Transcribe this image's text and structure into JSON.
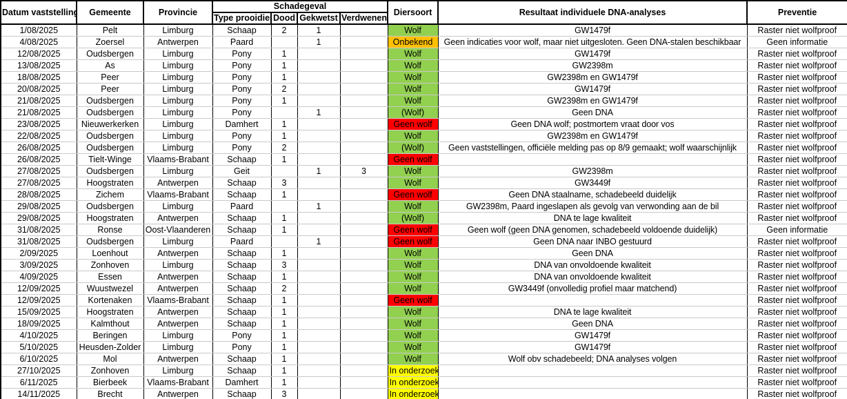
{
  "table": {
    "header": {
      "datum_vaststelling": "Datum vaststelling",
      "gemeente": "Gemeente",
      "provincie": "Provincie",
      "schadegeval_group": "Schadegeval",
      "type_prooidier": "Type prooidier",
      "dood": "Dood",
      "gekwetst": "Gekwetst",
      "verdwenen": "Verdwenen",
      "diersoort": "Diersoort",
      "resultaat_dna": "Resultaat individuele DNA-analyses",
      "preventie": "Preventie"
    },
    "status_colors": {
      "Wolf": "#92D050",
      "(Wolf)": "#92D050",
      "Onbekend": "#FFC000",
      "Geen wolf": "#FF0000",
      "In onderzoek": "#FFFF00"
    },
    "rows": [
      {
        "datum": "1/08/2025",
        "gemeente": "Pelt",
        "provincie": "Limburg",
        "type_prooidier": "Schaap",
        "dood": "2",
        "gekwetst": "1",
        "verdwenen": "",
        "diersoort": "Wolf",
        "resultaat": "GW1479f",
        "preventie": "Raster niet wolfproof"
      },
      {
        "datum": "4/08/2025",
        "gemeente": "Zoersel",
        "provincie": "Antwerpen",
        "type_prooidier": "Paard",
        "dood": "",
        "gekwetst": "1",
        "verdwenen": "",
        "diersoort": "Onbekend",
        "resultaat": "Geen indicaties voor wolf, maar niet uitgesloten. Geen DNA-stalen beschikbaar",
        "preventie": "Geen informatie"
      },
      {
        "datum": "12/08/2025",
        "gemeente": "Oudsbergen",
        "provincie": "Limburg",
        "type_prooidier": "Pony",
        "dood": "1",
        "gekwetst": "",
        "verdwenen": "",
        "diersoort": "Wolf",
        "resultaat": "GW1479f",
        "preventie": "Raster niet wolfproof"
      },
      {
        "datum": "13/08/2025",
        "gemeente": "As",
        "provincie": "Limburg",
        "type_prooidier": "Pony",
        "dood": "1",
        "gekwetst": "",
        "verdwenen": "",
        "diersoort": "Wolf",
        "resultaat": "GW2398m",
        "preventie": "Raster niet wolfproof"
      },
      {
        "datum": "18/08/2025",
        "gemeente": "Peer",
        "provincie": "Limburg",
        "type_prooidier": "Pony",
        "dood": "1",
        "gekwetst": "",
        "verdwenen": "",
        "diersoort": "Wolf",
        "resultaat": "GW2398m en GW1479f",
        "preventie": "Raster niet wolfproof"
      },
      {
        "datum": "20/08/2025",
        "gemeente": "Peer",
        "provincie": "Limburg",
        "type_prooidier": "Pony",
        "dood": "2",
        "gekwetst": "",
        "verdwenen": "",
        "diersoort": "Wolf",
        "resultaat": "GW1479f",
        "preventie": "Raster niet wolfproof"
      },
      {
        "datum": "21/08/2025",
        "gemeente": "Oudsbergen",
        "provincie": "Limburg",
        "type_prooidier": "Pony",
        "dood": "1",
        "gekwetst": "",
        "verdwenen": "",
        "diersoort": "Wolf",
        "resultaat": "GW2398m en GW1479f",
        "preventie": "Raster niet wolfproof"
      },
      {
        "datum": "21/08/2025",
        "gemeente": "Oudsbergen",
        "provincie": "Limburg",
        "type_prooidier": "Pony",
        "dood": "",
        "gekwetst": "1",
        "verdwenen": "",
        "diersoort": "(Wolf)",
        "resultaat": "Geen DNA",
        "preventie": "Raster niet wolfproof"
      },
      {
        "datum": "23/08/2025",
        "gemeente": "Nieuwerkerken",
        "provincie": "Limburg",
        "type_prooidier": "Damhert",
        "dood": "1",
        "gekwetst": "",
        "verdwenen": "",
        "diersoort": "Geen wolf",
        "resultaat": "Geen DNA wolf; postmortem vraat door vos",
        "preventie": "Raster niet wolfproof"
      },
      {
        "datum": "22/08/2025",
        "gemeente": "Oudsbergen",
        "provincie": "Limburg",
        "type_prooidier": "Pony",
        "dood": "1",
        "gekwetst": "",
        "verdwenen": "",
        "diersoort": "Wolf",
        "resultaat": "GW2398m en GW1479f",
        "preventie": "Raster niet wolfproof"
      },
      {
        "datum": "26/08/2025",
        "gemeente": "Oudsbergen",
        "provincie": "Limburg",
        "type_prooidier": "Pony",
        "dood": "2",
        "gekwetst": "",
        "verdwenen": "",
        "diersoort": "(Wolf)",
        "resultaat": "Geen vaststellingen, officiële melding pas op 8/9 gemaakt; wolf waarschijnlijk",
        "preventie": "Raster niet wolfproof"
      },
      {
        "datum": "26/08/2025",
        "gemeente": "Tielt-Winge",
        "provincie": "Vlaams-Brabant",
        "type_prooidier": "Schaap",
        "dood": "1",
        "gekwetst": "",
        "verdwenen": "",
        "diersoort": "Geen wolf",
        "resultaat": "",
        "preventie": "Raster niet wolfproof"
      },
      {
        "datum": "27/08/2025",
        "gemeente": "Oudsbergen",
        "provincie": "Limburg",
        "type_prooidier": "Geit",
        "dood": "",
        "gekwetst": "1",
        "verdwenen": "3",
        "diersoort": "Wolf",
        "resultaat": "GW2398m",
        "preventie": "Raster niet wolfproof"
      },
      {
        "datum": "27/08/2025",
        "gemeente": "Hoogstraten",
        "provincie": "Antwerpen",
        "type_prooidier": "Schaap",
        "dood": "3",
        "gekwetst": "",
        "verdwenen": "",
        "diersoort": "Wolf",
        "resultaat": "GW3449f",
        "preventie": "Raster niet wolfproof"
      },
      {
        "datum": "28/08/2025",
        "gemeente": "Zichem",
        "provincie": "Vlaams-Brabant",
        "type_prooidier": "Schaap",
        "dood": "1",
        "gekwetst": "",
        "verdwenen": "",
        "diersoort": "Geen wolf",
        "resultaat": "Geen DNA staalname, schadebeeld duidelijk",
        "preventie": "Raster niet wolfproof"
      },
      {
        "datum": "29/08/2025",
        "gemeente": "Oudsbergen",
        "provincie": "Limburg",
        "type_prooidier": "Paard",
        "dood": "",
        "gekwetst": "1",
        "verdwenen": "",
        "diersoort": "Wolf",
        "resultaat": "GW2398m, Paard ingeslapen als gevolg van verwonding aan de bil",
        "preventie": "Raster niet wolfproof"
      },
      {
        "datum": "29/08/2025",
        "gemeente": "Hoogstraten",
        "provincie": "Antwerpen",
        "type_prooidier": "Schaap",
        "dood": "1",
        "gekwetst": "",
        "verdwenen": "",
        "diersoort": "(Wolf)",
        "resultaat": "DNA te lage kwaliteit",
        "preventie": "Raster niet wolfproof"
      },
      {
        "datum": "31/08/2025",
        "gemeente": "Ronse",
        "provincie": "Oost-Vlaanderen",
        "type_prooidier": "Schaap",
        "dood": "1",
        "gekwetst": "",
        "verdwenen": "",
        "diersoort": "Geen wolf",
        "resultaat": "Geen wolf (geen DNA genomen, schadebeeld voldoende duidelijk)",
        "preventie": "Geen informatie"
      },
      {
        "datum": "31/08/2025",
        "gemeente": "Oudsbergen",
        "provincie": "Limburg",
        "type_prooidier": "Paard",
        "dood": "",
        "gekwetst": "1",
        "verdwenen": "",
        "diersoort": "Geen wolf",
        "resultaat": "Geen DNA naar INBO gestuurd",
        "preventie": "Raster niet wolfproof"
      },
      {
        "datum": "2/09/2025",
        "gemeente": "Loenhout",
        "provincie": "Antwerpen",
        "type_prooidier": "Schaap",
        "dood": "1",
        "gekwetst": "",
        "verdwenen": "",
        "diersoort": "Wolf",
        "resultaat": "Geen DNA",
        "preventie": "Raster niet wolfproof"
      },
      {
        "datum": "3/09/2025",
        "gemeente": "Zonhoven",
        "provincie": "Limburg",
        "type_prooidier": "Schaap",
        "dood": "3",
        "gekwetst": "",
        "verdwenen": "",
        "diersoort": "Wolf",
        "resultaat": "DNA van onvoldoende kwaliteit",
        "preventie": "Raster niet wolfproof"
      },
      {
        "datum": "4/09/2025",
        "gemeente": "Essen",
        "provincie": "Antwerpen",
        "type_prooidier": "Schaap",
        "dood": "1",
        "gekwetst": "",
        "verdwenen": "",
        "diersoort": "Wolf",
        "resultaat": "DNA van onvoldoende kwaliteit",
        "preventie": "Raster niet wolfproof"
      },
      {
        "datum": "12/09/2025",
        "gemeente": "Wuustwezel",
        "provincie": "Antwerpen",
        "type_prooidier": "Schaap",
        "dood": "2",
        "gekwetst": "",
        "verdwenen": "",
        "diersoort": "Wolf",
        "resultaat": "GW3449f (onvolledig profiel maar matchend)",
        "preventie": "Raster niet wolfproof"
      },
      {
        "datum": "12/09/2025",
        "gemeente": "Kortenaken",
        "provincie": "Vlaams-Brabant",
        "type_prooidier": "Schaap",
        "dood": "1",
        "gekwetst": "",
        "verdwenen": "",
        "diersoort": "Geen wolf",
        "resultaat": "",
        "preventie": "Raster niet wolfproof"
      },
      {
        "datum": "15/09/2025",
        "gemeente": "Hoogstraten",
        "provincie": "Antwerpen",
        "type_prooidier": "Schaap",
        "dood": "1",
        "gekwetst": "",
        "verdwenen": "",
        "diersoort": "Wolf",
        "resultaat": "DNA te lage kwaliteit",
        "preventie": "Raster niet wolfproof"
      },
      {
        "datum": "18/09/2025",
        "gemeente": "Kalmthout",
        "provincie": "Antwerpen",
        "type_prooidier": "Schaap",
        "dood": "1",
        "gekwetst": "",
        "verdwenen": "",
        "diersoort": "Wolf",
        "resultaat": "Geen DNA",
        "preventie": "Raster niet wolfproof"
      },
      {
        "datum": "4/10/2025",
        "gemeente": "Beringen",
        "provincie": "Limburg",
        "type_prooidier": "Pony",
        "dood": "1",
        "gekwetst": "",
        "verdwenen": "",
        "diersoort": "Wolf",
        "resultaat": "GW1479f",
        "preventie": "Raster niet wolfproof"
      },
      {
        "datum": "5/10/2025",
        "gemeente": "Heusden-Zolder",
        "provincie": "Limburg",
        "type_prooidier": "Pony",
        "dood": "1",
        "gekwetst": "",
        "verdwenen": "",
        "diersoort": "Wolf",
        "resultaat": "GW1479f",
        "preventie": "Raster niet wolfproof"
      },
      {
        "datum": "6/10/2025",
        "gemeente": "Mol",
        "provincie": "Antwerpen",
        "type_prooidier": "Schaap",
        "dood": "1",
        "gekwetst": "",
        "verdwenen": "",
        "diersoort": "Wolf",
        "resultaat": "Wolf obv schadebeeld; DNA analyses volgen",
        "preventie": "Raster niet wolfproof"
      },
      {
        "datum": "27/10/2025",
        "gemeente": "Zonhoven",
        "provincie": "Limburg",
        "type_prooidier": "Schaap",
        "dood": "1",
        "gekwetst": "",
        "verdwenen": "",
        "diersoort": "In onderzoek",
        "resultaat": "",
        "preventie": "Raster niet wolfproof"
      },
      {
        "datum": "6/11/2025",
        "gemeente": "Bierbeek",
        "provincie": "Vlaams-Brabant",
        "type_prooidier": "Damhert",
        "dood": "1",
        "gekwetst": "",
        "verdwenen": "",
        "diersoort": "In onderzoek",
        "resultaat": "",
        "preventie": "Raster niet wolfproof"
      },
      {
        "datum": "14/11/2025",
        "gemeente": "Brecht",
        "provincie": "Antwerpen",
        "type_prooidier": "Schaap",
        "dood": "3",
        "gekwetst": "",
        "verdwenen": "",
        "diersoort": "In onderzoek",
        "resultaat": "",
        "preventie": "Raster niet wolfproof"
      }
    ]
  }
}
